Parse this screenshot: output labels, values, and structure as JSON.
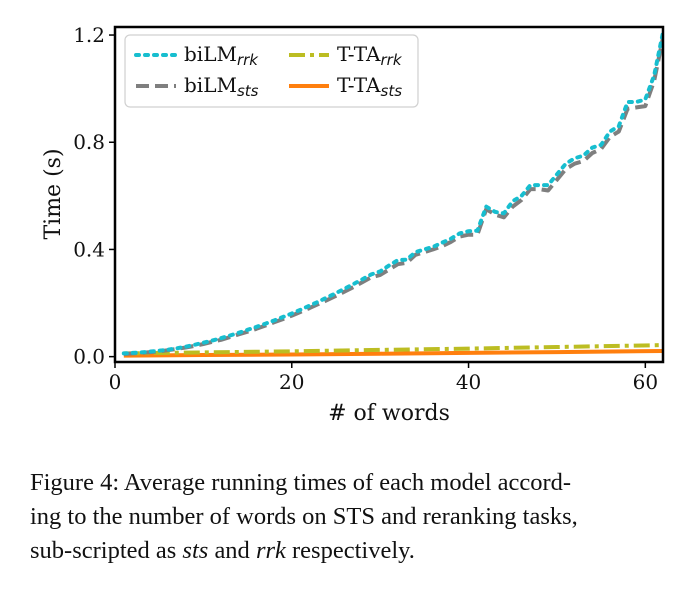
{
  "chart_data": {
    "type": "line",
    "xlabel": "# of words",
    "ylabel": "Time (s)",
    "xlim": [
      0,
      62
    ],
    "ylim": [
      -0.02,
      1.23
    ],
    "xticks": [
      0,
      20,
      40,
      60
    ],
    "yticks": [
      0.0,
      0.4,
      0.8,
      1.2
    ],
    "xtick_labels": [
      "0",
      "20",
      "40",
      "60"
    ],
    "ytick_labels": [
      "0.0",
      "0.4",
      "0.8",
      "1.2"
    ],
    "grid": false,
    "legend_position": "top-left",
    "series": [
      {
        "name": "biLM",
        "subscript": "rrk",
        "color": "#17becf",
        "style": "dotted",
        "x": [
          1,
          2,
          3,
          4,
          5,
          6,
          7,
          8,
          9,
          10,
          11,
          12,
          13,
          14,
          15,
          16,
          17,
          18,
          19,
          20,
          21,
          22,
          23,
          24,
          25,
          26,
          27,
          28,
          29,
          30,
          31,
          32,
          33,
          34,
          35,
          36,
          37,
          38,
          39,
          40,
          41,
          42,
          43,
          44,
          45,
          46,
          47,
          48,
          49,
          50,
          51,
          52,
          53,
          54,
          55,
          56,
          57,
          58,
          59,
          60,
          61,
          62
        ],
        "y": [
          0.012,
          0.014,
          0.016,
          0.019,
          0.022,
          0.026,
          0.031,
          0.037,
          0.044,
          0.052,
          0.06,
          0.069,
          0.079,
          0.089,
          0.1,
          0.111,
          0.123,
          0.135,
          0.148,
          0.161,
          0.175,
          0.19,
          0.205,
          0.221,
          0.237,
          0.254,
          0.271,
          0.289,
          0.307,
          0.318,
          0.34,
          0.36,
          0.362,
          0.39,
          0.4,
          0.41,
          0.425,
          0.44,
          0.46,
          0.468,
          0.47,
          0.56,
          0.54,
          0.535,
          0.58,
          0.6,
          0.64,
          0.64,
          0.64,
          0.68,
          0.72,
          0.74,
          0.75,
          0.78,
          0.79,
          0.84,
          0.86,
          0.95,
          0.95,
          0.96,
          1.05,
          1.21
        ]
      },
      {
        "name": "biLM",
        "subscript": "sts",
        "color": "#7f7f7f",
        "style": "dashed",
        "x": [
          1,
          2,
          3,
          4,
          5,
          6,
          7,
          8,
          9,
          10,
          11,
          12,
          13,
          14,
          15,
          16,
          17,
          18,
          19,
          20,
          21,
          22,
          23,
          24,
          25,
          26,
          27,
          28,
          29,
          30,
          31,
          32,
          33,
          34,
          35,
          36,
          37,
          38,
          39,
          40,
          41,
          42,
          43,
          44,
          45,
          46,
          47,
          48,
          49,
          50,
          51,
          52,
          53,
          54,
          55,
          56,
          57,
          58,
          59,
          60,
          61,
          62
        ],
        "y": [
          0.01,
          0.012,
          0.014,
          0.017,
          0.02,
          0.024,
          0.029,
          0.034,
          0.04,
          0.047,
          0.055,
          0.063,
          0.073,
          0.083,
          0.093,
          0.104,
          0.116,
          0.128,
          0.14,
          0.153,
          0.167,
          0.181,
          0.196,
          0.211,
          0.227,
          0.243,
          0.26,
          0.278,
          0.296,
          0.305,
          0.325,
          0.345,
          0.35,
          0.38,
          0.39,
          0.4,
          0.412,
          0.428,
          0.448,
          0.455,
          0.455,
          0.55,
          0.53,
          0.52,
          0.56,
          0.585,
          0.625,
          0.625,
          0.62,
          0.66,
          0.7,
          0.72,
          0.73,
          0.76,
          0.775,
          0.82,
          0.84,
          0.925,
          0.93,
          0.935,
          1.03,
          1.19
        ]
      },
      {
        "name": "T-TA",
        "subscript": "rrk",
        "color": "#bcbd22",
        "style": "dashdot",
        "x": [
          1,
          10,
          20,
          30,
          40,
          50,
          62
        ],
        "y": [
          0.012,
          0.016,
          0.02,
          0.025,
          0.03,
          0.036,
          0.043
        ]
      },
      {
        "name": "T-TA",
        "subscript": "sts",
        "color": "#ff7f0e",
        "style": "solid",
        "x": [
          1,
          10,
          20,
          30,
          40,
          50,
          62
        ],
        "y": [
          0.004,
          0.006,
          0.008,
          0.011,
          0.014,
          0.017,
          0.021
        ]
      }
    ]
  },
  "caption": {
    "line1": "Figure 4: Average running times of each model accord-",
    "line2": "ing to the number of words on STS and reranking tasks,",
    "line3_prefix": "sub-scripted as ",
    "sts": "sts",
    "and": " and ",
    "rrk": "rrk",
    "line3_suffix": " respectively."
  }
}
